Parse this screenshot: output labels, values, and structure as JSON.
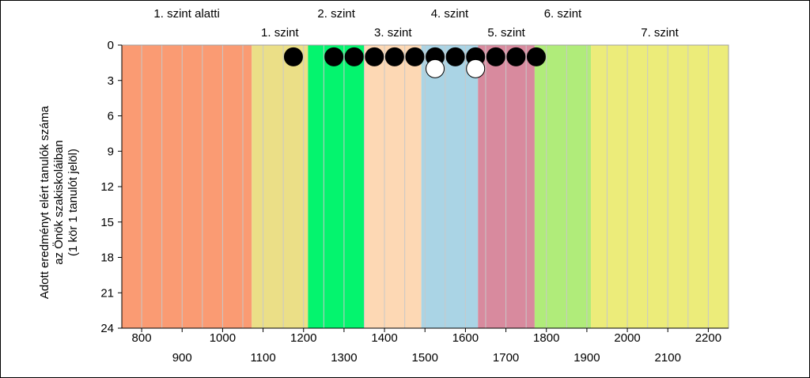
{
  "chart_data": {
    "type": "scatter",
    "title": "",
    "xlabel": "",
    "ylabel_lines": [
      "Adott eredményt elért tanulók száma",
      "az Önök szakiskoláiban",
      "(1 kör 1 tanulót jelöl)"
    ],
    "xlim": [
      751,
      2250
    ],
    "ylim": [
      0,
      24
    ],
    "y_inverted": true,
    "y_ticks": [
      0,
      3,
      6,
      9,
      12,
      15,
      18,
      21,
      24
    ],
    "x_ticks_upper": [
      800,
      1000,
      1200,
      1400,
      1600,
      1800,
      2000,
      2200
    ],
    "x_ticks_lower": [
      900,
      1100,
      1300,
      1500,
      1700,
      1900,
      2100
    ],
    "x_minor_step": 50,
    "bands": [
      {
        "label": "1. szint alatti",
        "row": "top",
        "from": 751,
        "to": 1072,
        "color": "#fa9b73"
      },
      {
        "label": "1. szint",
        "row": "bottom",
        "from": 1072,
        "to": 1211,
        "color": "#ebdf87"
      },
      {
        "label": "2. szint",
        "row": "top",
        "from": 1211,
        "to": 1351,
        "color": "#04f46e"
      },
      {
        "label": "3. szint",
        "row": "bottom",
        "from": 1351,
        "to": 1491,
        "color": "#fdd8b4"
      },
      {
        "label": "4. szint",
        "row": "top",
        "from": 1491,
        "to": 1631,
        "color": "#aad4e5"
      },
      {
        "label": "5. szint",
        "row": "bottom",
        "from": 1631,
        "to": 1771,
        "color": "#d88a9e"
      },
      {
        "label": "6. szint",
        "row": "top",
        "from": 1771,
        "to": 1910,
        "color": "#b0ec7a"
      },
      {
        "label": "7. szint",
        "row": "bottom",
        "from": 1910,
        "to": 2250,
        "color": "#ecec7a"
      }
    ],
    "series": [
      {
        "marker_color": "#000000",
        "points": [
          {
            "x": 1175,
            "y": 1
          },
          {
            "x": 1275,
            "y": 1
          },
          {
            "x": 1325,
            "y": 1
          },
          {
            "x": 1375,
            "y": 1
          },
          {
            "x": 1425,
            "y": 1
          },
          {
            "x": 1475,
            "y": 1
          },
          {
            "x": 1525,
            "y": 1
          },
          {
            "x": 1575,
            "y": 1
          },
          {
            "x": 1625,
            "y": 1
          },
          {
            "x": 1675,
            "y": 1
          },
          {
            "x": 1725,
            "y": 1
          },
          {
            "x": 1775,
            "y": 1
          }
        ]
      },
      {
        "marker_color": "#ffffff",
        "points": [
          {
            "x": 1525,
            "y": 2
          },
          {
            "x": 1625,
            "y": 2
          }
        ]
      }
    ]
  }
}
